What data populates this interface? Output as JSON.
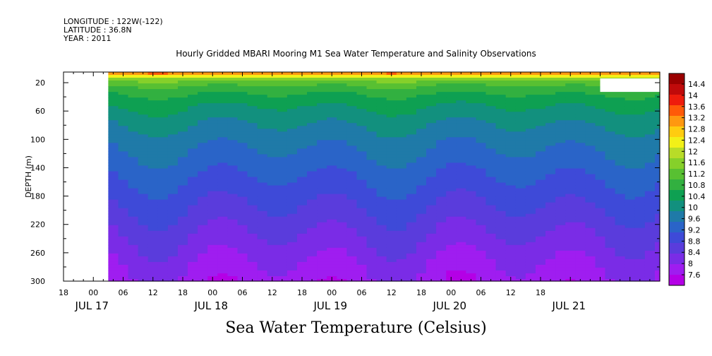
{
  "header": {
    "longitude": "LONGITUDE : 122W(-122)",
    "latitude": "LATITUDE : 36.8N",
    "year": "YEAR : 2011"
  },
  "title": "Hourly Gridded MBARI Mooring M1 Sea Water Temperature and Salinity Observations",
  "caption": "Sea Water Temperature (Celsius)",
  "chart_data": {
    "type": "heatmap",
    "title": "Hourly Gridded MBARI Mooring M1 Sea Water Temperature and Salinity Observations",
    "xlabel": "",
    "ylabel": "DEPTH (m)",
    "colorbar_label": "Sea Water Temperature (Celsius)",
    "x_tick_labels": [
      "18",
      "00",
      "06",
      "12",
      "18",
      "00",
      "06",
      "12",
      "18",
      "00",
      "06",
      "12",
      "18",
      "00",
      "06",
      "12",
      "18"
    ],
    "x_date_labels": [
      "JUL 17",
      "JUL 18",
      "JUL 19",
      "JUL 20",
      "JUL 21"
    ],
    "x_range_hours_from_jul17_00": [
      -6,
      114
    ],
    "data_start_hours_from_jul17_00": 3,
    "y_ticks": [
      20,
      60,
      100,
      140,
      180,
      220,
      260,
      300
    ],
    "ylim": [
      300,
      5
    ],
    "colorbar_levels": [
      7.6,
      8,
      8.4,
      8.8,
      9.2,
      9.6,
      10,
      10.4,
      10.8,
      11.2,
      11.6,
      12,
      12.4,
      12.8,
      13.2,
      13.6,
      14,
      14.4
    ],
    "colorbar_labels": [
      "14.4",
      "14",
      "13.6",
      "13.2",
      "12.8",
      "12.4",
      "12",
      "11.6",
      "11.2",
      "10.8",
      "10.4",
      "10",
      "9.6",
      "9.2",
      "8.8",
      "8.4",
      "8",
      "7.6"
    ],
    "colors": [
      "#b400e6",
      "#9f1df0",
      "#7a2ce6",
      "#5a3cdc",
      "#3e4ad8",
      "#2a64c8",
      "#1f7aa8",
      "#12907e",
      "#0ea052",
      "#32b040",
      "#58c032",
      "#86d02a",
      "#b8dc28",
      "#f2f018",
      "#ffcc10",
      "#ff9810",
      "#ff5a08",
      "#ee1c0c",
      "#c00a0a",
      "#9a0000"
    ],
    "depth_profile": [
      {
        "depth": 5,
        "temp": 14.2
      },
      {
        "depth": 10,
        "temp": 12.6
      },
      {
        "depth": 15,
        "temp": 11.8
      },
      {
        "depth": 20,
        "temp": 11.4
      },
      {
        "depth": 30,
        "temp": 11.0
      },
      {
        "depth": 40,
        "temp": 10.7
      },
      {
        "depth": 60,
        "temp": 10.3
      },
      {
        "depth": 80,
        "temp": 10.0
      },
      {
        "depth": 100,
        "temp": 9.75
      },
      {
        "depth": 120,
        "temp": 9.55
      },
      {
        "depth": 140,
        "temp": 9.35
      },
      {
        "depth": 160,
        "temp": 9.15
      },
      {
        "depth": 180,
        "temp": 8.95
      },
      {
        "depth": 200,
        "temp": 8.75
      },
      {
        "depth": 220,
        "temp": 8.55
      },
      {
        "depth": 240,
        "temp": 8.35
      },
      {
        "depth": 260,
        "temp": 8.15
      },
      {
        "depth": 280,
        "temp": 7.95
      },
      {
        "depth": 300,
        "temp": 7.8
      }
    ]
  }
}
